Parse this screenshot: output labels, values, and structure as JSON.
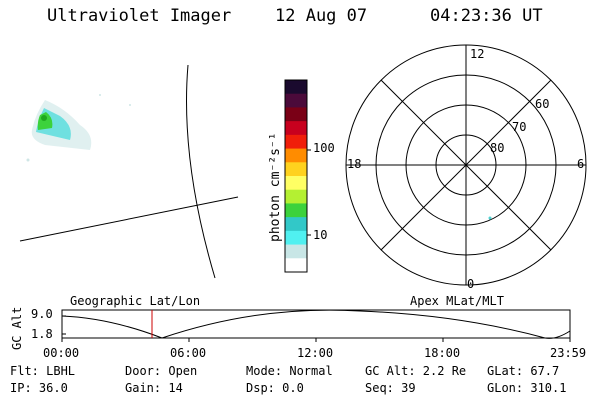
{
  "header": {
    "instrument": "Ultraviolet Imager",
    "date": "12 Aug 07",
    "time": "04:23:36 UT"
  },
  "colorbar": {
    "unit_label": "photon cm⁻²s⁻¹",
    "tick_labels": [
      "100",
      "10"
    ],
    "colors": [
      "#1a0a2e",
      "#4b0a3a",
      "#7a0016",
      "#c8001e",
      "#f01e0a",
      "#ff8c00",
      "#ffd21e",
      "#ffff64",
      "#b4f032",
      "#3cd23c",
      "#32c8c8",
      "#50f0f0",
      "#c8e6e6",
      "#ffffff"
    ]
  },
  "polar_plot": {
    "mlt_labels": [
      "12",
      "18",
      "6",
      "0"
    ],
    "lat_labels": [
      "60",
      "70",
      "80"
    ]
  },
  "timeline": {
    "y_axis_label": "GC Alt",
    "y_max": "9.0",
    "y_min": "1.8",
    "left_label": "Geographic Lat/Lon",
    "right_label": "Apex MLat/MLT",
    "time_ticks": [
      "00:00",
      "06:00",
      "12:00",
      "18:00",
      "23:59"
    ],
    "current_time_color": "#cc0000"
  },
  "info": {
    "filter": "Flt: LBHL",
    "ip": "IP: 36.0",
    "door": "Door: Open",
    "gain": "Gain: 14",
    "mode": "Mode: Normal",
    "dsp": "Dsp:    0.0",
    "gc_alt": "GC Alt: 2.2 Re",
    "seq": "Seq: 39",
    "glat": "GLat:  67.7",
    "glon": "GLon: 310.1"
  }
}
